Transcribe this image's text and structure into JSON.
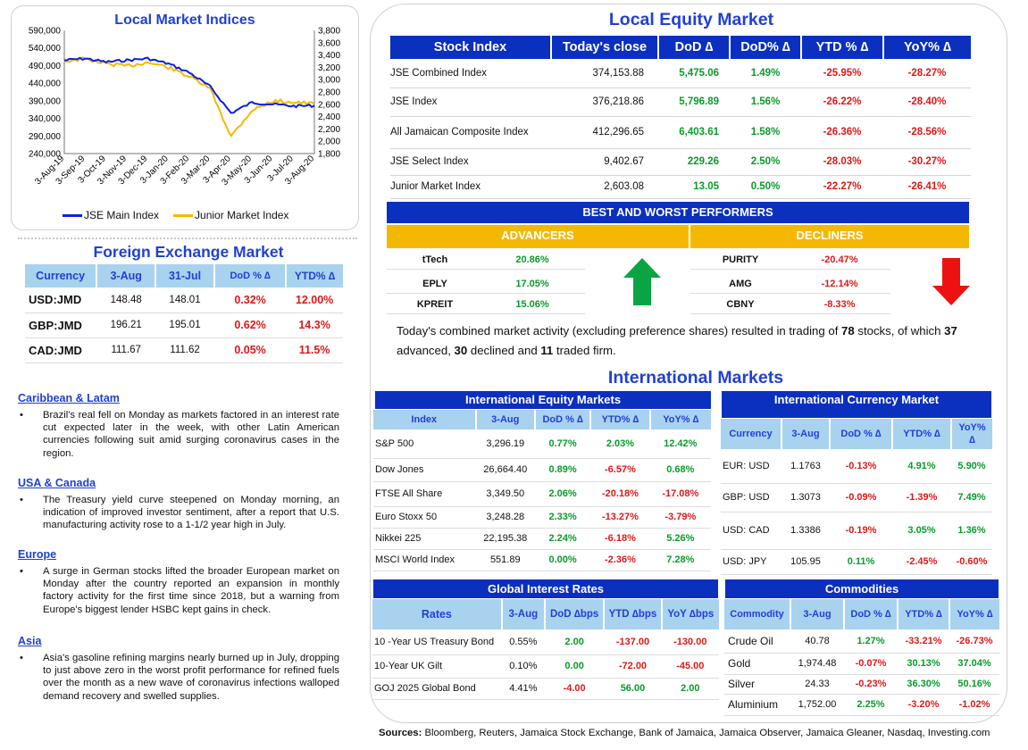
{
  "chart": {
    "title": "Local Market Indices",
    "left_ticks": [
      "590,000",
      "540,000",
      "490,000",
      "440,000",
      "390,000",
      "340,000",
      "290,000",
      "240,000"
    ],
    "right_ticks": [
      "3,800",
      "3,600",
      "3,400",
      "3,200",
      "3,000",
      "2,800",
      "2,600",
      "2,400",
      "2,200",
      "2,000",
      "1,800"
    ],
    "x_ticks": [
      "3-Aug-19",
      "3-Sep-19",
      "3-Oct-19",
      "3-Nov-19",
      "3-Dec-19",
      "3-Jan-20",
      "3-Feb-20",
      "3-Mar-20",
      "3-Apr-20",
      "3-May-20",
      "3-Jun-20",
      "3-Jul-20",
      "3-Aug-20"
    ],
    "legend": [
      "JSE Main Index",
      "Junior Market Index"
    ],
    "colors": {
      "main": "#0a1ee6",
      "junior": "#f5b800"
    }
  },
  "chart_data": {
    "type": "line",
    "x": [
      "3-Aug-19",
      "3-Sep-19",
      "3-Oct-19",
      "3-Nov-19",
      "3-Dec-19",
      "3-Jan-20",
      "3-Feb-20",
      "3-Mar-20",
      "3-Apr-20",
      "3-May-20",
      "3-Jun-20",
      "3-Jul-20",
      "3-Aug-20"
    ],
    "series": [
      {
        "name": "JSE Main Index",
        "axis": "left",
        "values": [
          505000,
          510000,
          500000,
          505000,
          510000,
          495000,
          470000,
          430000,
          355000,
          385000,
          380000,
          375000,
          376218
        ]
      },
      {
        "name": "Junior Market Index",
        "axis": "right",
        "values": [
          3300,
          3340,
          3260,
          3220,
          3280,
          3200,
          3050,
          2850,
          2080,
          2500,
          2650,
          2640,
          2603
        ]
      }
    ],
    "ylim_left": [
      240000,
      590000
    ],
    "ylim_right": [
      1800,
      3800
    ]
  },
  "fx": {
    "title": "Foreign Exchange Market",
    "headers": [
      "Currency",
      "3-Aug",
      "31-Jul",
      "DoD % ∆",
      "YTD% ∆"
    ],
    "rows": [
      {
        "cur": "USD:JMD",
        "a": "148.48",
        "b": "148.01",
        "dod": "0.32%",
        "ytd": "12.00%"
      },
      {
        "cur": "GBP:JMD",
        "a": "196.21",
        "b": "195.01",
        "dod": "0.62%",
        "ytd": "14.3%"
      },
      {
        "cur": "CAD:JMD",
        "a": "111.67",
        "b": "111.62",
        "dod": "0.05%",
        "ytd": "11.5%"
      }
    ]
  },
  "news": [
    {
      "heading": "Caribbean & Latam",
      "text": "Brazil's real fell on Monday as markets factored in an interest rate cut expected later in the week, with other Latin American currencies following suit amid surging coronavirus cases in the region."
    },
    {
      "heading": "USA & Canada",
      "text": "The Treasury yield curve steepened on Monday morning, an indication of improved investor sentiment, after a report that U.S. manufacturing activity rose to a 1-1/2 year high in July."
    },
    {
      "heading": "Europe",
      "text": "A surge in German stocks lifted the broader European market on Monday after the country reported an expansion in monthly factory activity for the first time since 2018, but a warning from Europe's biggest lender HSBC kept gains in check."
    },
    {
      "heading": "Asia",
      "text": "Asia's gasoline refining margins nearly burned up in July, dropping to just above zero in the worst profit performance for refined fuels over the month as a new wave of coronavirus infections walloped demand recovery and swelled supplies."
    }
  ],
  "equity": {
    "title": "Local Equity Market",
    "headers": [
      "Stock Index",
      "Today's close",
      "DoD  ∆",
      "DoD% ∆",
      "YTD % ∆",
      "YoY% ∆"
    ],
    "rows": [
      {
        "name": "JSE Combined Index",
        "close": "374,153.88",
        "dod": "5,475.06",
        "dodp": "1.49%",
        "ytd": "-25.95%",
        "yoy": "-28.27%"
      },
      {
        "name": "JSE Index",
        "close": "376,218.86",
        "dod": "5,796.89",
        "dodp": "1.56%",
        "ytd": "-26.22%",
        "yoy": "-28.40%"
      },
      {
        "name": "All Jamaican Composite Index",
        "close": "412,296.65",
        "dod": "6,403.61",
        "dodp": "1.58%",
        "ytd": "-26.36%",
        "yoy": "-28.56%"
      },
      {
        "name": "JSE Select Index",
        "close": "9,402.67",
        "dod": "229.26",
        "dodp": "2.50%",
        "ytd": "-28.03%",
        "yoy": "-30.27%"
      },
      {
        "name": "Junior Market Index",
        "close": "2,603.08",
        "dod": "13.05",
        "dodp": "0.50%",
        "ytd": "-22.27%",
        "yoy": "-26.41%"
      }
    ],
    "bw_title": "BEST AND WORST PERFORMERS",
    "adv_title": "ADVANCERS",
    "dec_title": "DECLINERS",
    "advancers": [
      {
        "name": "tTech",
        "val": "20.86%"
      },
      {
        "name": "EPLY",
        "val": "17.05%"
      },
      {
        "name": "KPREIT",
        "val": "15.06%"
      }
    ],
    "decliners": [
      {
        "name": "PURITY",
        "val": "-20.47%"
      },
      {
        "name": "AMG",
        "val": "-12.14%"
      },
      {
        "name": "CBNY",
        "val": "-8.33%"
      }
    ],
    "summary": {
      "p1": "Today's combined market activity (excluding preference shares) resulted in trading of ",
      "n1": "78",
      "p2": " stocks, of which ",
      "n2": "37",
      "p3": " advanced, ",
      "n3": "30",
      "p4": " declined and ",
      "n4": "11",
      "p5": " traded firm."
    }
  },
  "intl": {
    "title": "International Markets",
    "equity": {
      "title": "International Equity Markets",
      "headers": [
        "Index",
        "3-Aug",
        "DoD % ∆",
        "YTD% ∆",
        "YoY% ∆"
      ],
      "rows": [
        {
          "name": "S&P 500",
          "v": "3,296.19",
          "dod": "0.77%",
          "ytd": "2.03%",
          "yoy": "12.42%"
        },
        {
          "name": "Dow Jones",
          "v": "26,664.40",
          "dod": "0.89%",
          "ytd": "-6.57%",
          "yoy": "0.68%"
        },
        {
          "name": "FTSE All Share",
          "v": "3,349.50",
          "dod": "2.06%",
          "ytd": "-20.18%",
          "yoy": "-17.08%"
        },
        {
          "name": "Euro Stoxx 50",
          "v": "3,248.28",
          "dod": "2.33%",
          "ytd": "-13.27%",
          "yoy": "-3.79%"
        },
        {
          "name": "Nikkei 225",
          "v": "22,195.38",
          "dod": "2.24%",
          "ytd": "-6.18%",
          "yoy": "5.26%"
        },
        {
          "name": "MSCI World Index",
          "v": "551.89",
          "dod": "0.00%",
          "ytd": "-2.36%",
          "yoy": "7.28%"
        }
      ]
    },
    "currency": {
      "title": "International Currency Market",
      "headers": [
        "Currency",
        "3-Aug",
        "DoD % ∆",
        "YTD% ∆",
        "YoY%",
        "∆"
      ],
      "rows": [
        {
          "name": "EUR: USD",
          "v": "1.1763",
          "dod": "-0.13%",
          "ytd": "4.91%",
          "yoy": "5.90%"
        },
        {
          "name": "GBP: USD",
          "v": "1.3073",
          "dod": "-0.09%",
          "ytd": "-1.39%",
          "yoy": "7.49%"
        },
        {
          "name": "USD: CAD",
          "v": "1.3386",
          "dod": "-0.19%",
          "ytd": "3.05%",
          "yoy": "1.36%"
        },
        {
          "name": "USD: JPY",
          "v": "105.95",
          "dod": "0.11%",
          "ytd": "-2.45%",
          "yoy": "-0.60%"
        }
      ]
    },
    "rates": {
      "title": "Global Interest Rates",
      "headers": [
        "Rates",
        "3-Aug",
        "DoD ∆bps",
        "YTD ∆bps",
        "YoY ∆bps"
      ],
      "rows": [
        {
          "name": "10 -Year US Treasury Bond",
          "v": "0.55%",
          "dod": "2.00",
          "ytd": "-137.00",
          "yoy": "-130.00"
        },
        {
          "name": "10-Year UK Gilt",
          "v": "0.10%",
          "dod": "0.00",
          "ytd": "-72.00",
          "yoy": "-45.00"
        },
        {
          "name": "GOJ 2025 Global Bond",
          "v": "4.41%",
          "dod": "-4.00",
          "ytd": "56.00",
          "yoy": "2.00"
        }
      ]
    },
    "commodities": {
      "title": "Commodities",
      "headers": [
        "Commodity",
        "3-Aug",
        "DoD % ∆",
        "YTD% ∆",
        "YoY% ∆"
      ],
      "rows": [
        {
          "name": "Crude Oil",
          "v": "40.78",
          "dod": "1.27%",
          "ytd": "-33.21%",
          "yoy": "-26.73%"
        },
        {
          "name": "Gold",
          "v": "1,974.48",
          "dod": "-0.07%",
          "ytd": "30.13%",
          "yoy": "37.04%"
        },
        {
          "name": "Silver",
          "v": "24.33",
          "dod": "-0.23%",
          "ytd": "36.30%",
          "yoy": "50.16%"
        },
        {
          "name": "Aluminium",
          "v": "1,752.00",
          "dod": "2.25%",
          "ytd": "-3.20%",
          "yoy": "-1.02%"
        }
      ]
    }
  },
  "sources": {
    "label": "Sources:",
    "text": " Bloomberg, Reuters, Jamaica Stock Exchange, Bank of Jamaica, Jamaica Observer, Jamaica Gleaner, Nasdaq, Investing.com"
  }
}
